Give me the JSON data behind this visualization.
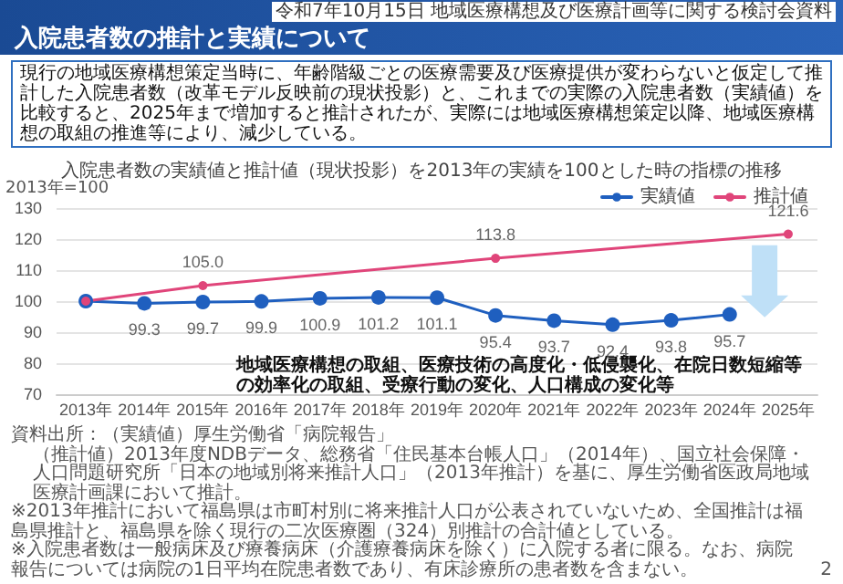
{
  "chart_data": {
    "type": "line",
    "title": "入院患者数の推計と実績について",
    "subtitle": "入院患者数の実績値と推計値（現状投影）を2013年の実績を100とした時の指標の推移",
    "ylabel": "2013年=100",
    "categories": [
      "2013年",
      "2014年",
      "2015年",
      "2016年",
      "2017年",
      "2018年",
      "2019年",
      "2020年",
      "2021年",
      "2022年",
      "2023年",
      "2024年",
      "2025年"
    ],
    "series": [
      {
        "name": "実績値",
        "color": "#1f5fbf",
        "values": [
          100,
          99.3,
          99.7,
          99.9,
          100.9,
          101.2,
          101.1,
          95.4,
          93.7,
          92.4,
          93.8,
          95.7,
          null
        ],
        "value_labels": [
          null,
          "99.3",
          "99.7",
          "99.9",
          "100.9",
          "101.2",
          "101.1",
          "95.4",
          "93.7",
          "92.4",
          "93.8",
          "95.7",
          null
        ]
      },
      {
        "name": "推計値",
        "color": "#e0457a",
        "values": [
          100,
          null,
          105.0,
          null,
          null,
          null,
          null,
          113.8,
          null,
          null,
          null,
          null,
          121.6
        ],
        "value_labels": [
          null,
          null,
          "105.0",
          null,
          null,
          null,
          null,
          "113.8",
          null,
          null,
          null,
          null,
          "121.6"
        ]
      }
    ],
    "ylim": [
      70,
      130
    ],
    "yticks": [
      70,
      80,
      90,
      100,
      110,
      120,
      130
    ],
    "grid": "y",
    "legend": "top right",
    "marker": "circle",
    "line_style": "solid",
    "annotations": [
      "令和7年10月15日 地域医療構想及び医療計画等に関する検討会資料",
      "現行の地域医療構想策定当時に、年齢階級ごとの医療需要及び医療提供が変わらないと仮定して推計した入院患者数（改革モデル反映前の現状投影）と、これまでの実際の入院患者数（実績値）を比較すると、2025年まで増加すると推計されたが、実際には地域医療構想策定以降、地域医療構想の取組の推進等により、減少している。",
      "地域医療構想の取組、医療技術の高度化・低侵襲化、在院日数短縮等の効率化の取組、受療行動の変化、人口構成の変化等",
      "資料出所：（実績値）厚生労働省「病院報告」",
      "（推計値）2013年度NDBデータ、総務省「住民基本台帳人口」（2014年）、国立社会保障・人口問題研究所「日本の地域別将来推計人口」（2013年推計）を基に、厚生労働省医政局地域医療計画課において推計。",
      "※2013年推計において福島県は市町村別に将来推計人口が公表されていないため、全国推計は福島県推計と、福島県を除く現行の二次医療圏（324）別推計の合計値としている。",
      "※入院患者数は一般病床及び療養病床（介護療養病床を除く）に入院する者に限る。なお、病院報告については病院の1日平均在院患者数であり、有床診療所の患者数を含まない。",
      "2"
    ]
  }
}
